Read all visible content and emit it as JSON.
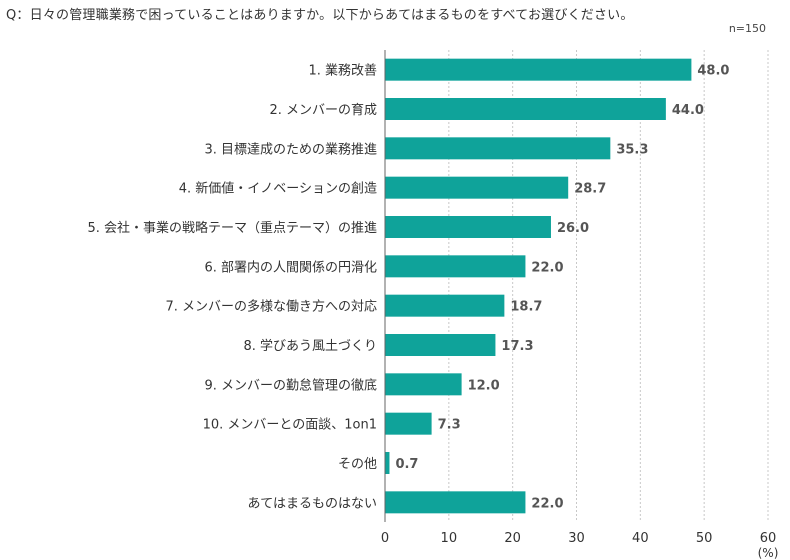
{
  "question": "Q：日々の管理職業務で困っていることはありますか。以下からあてはまるものをすべてお選びください。",
  "n_label": "n=150",
  "chart_data": {
    "type": "bar",
    "orientation": "horizontal",
    "categories": [
      "1. 業務改善",
      "2. メンバーの育成",
      "3. 目標達成のための業務推進",
      "4. 新価値・イノベーションの創造",
      "5. 会社・事業の戦略テーマ（重点テーマ）の推進",
      "6. 部署内の人間関係の円滑化",
      "7. メンバーの多様な働き方への対応",
      "8. 学びあう風土づくり",
      "9. メンバーの勤怠管理の徹底",
      "10. メンバーとの面談、1on1",
      "その他",
      "あてはまるものはない"
    ],
    "values": [
      48.0,
      44.0,
      35.3,
      28.7,
      26.0,
      22.0,
      18.7,
      17.3,
      12.0,
      7.3,
      0.7,
      22.0
    ],
    "value_labels": [
      "48.0",
      "44.0",
      "35.3",
      "28.7",
      "26.0",
      "22.0",
      "18.7",
      "17.3",
      "12.0",
      "7.3",
      "0.7",
      "22.0"
    ],
    "xlim": [
      0,
      60
    ],
    "xticks": [
      "0",
      "10",
      "20",
      "30",
      "40",
      "50",
      "60"
    ],
    "xunit": "(%)",
    "bar_color": "#0fa39a",
    "grid": "vertical-dashed"
  }
}
